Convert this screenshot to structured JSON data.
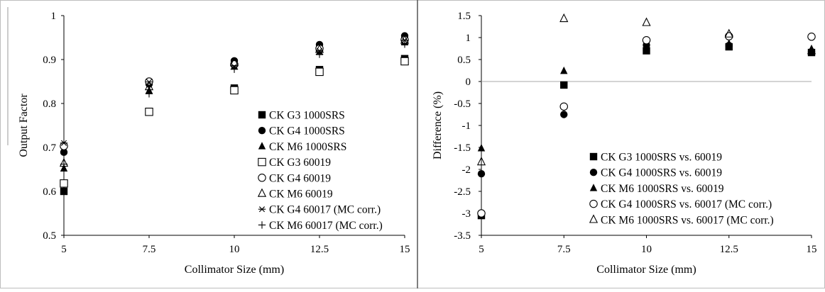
{
  "chart_data": [
    {
      "type": "scatter",
      "title": "",
      "xlabel": "Collimator Size (mm)",
      "ylabel": "Output Factor",
      "xlim": [
        5,
        15
      ],
      "ylim": [
        0.5,
        1
      ],
      "x_ticks": [
        "5",
        "7.5",
        "10",
        "12.5",
        "15"
      ],
      "y_ticks": [
        "0.5",
        "0.6",
        "0.7",
        "0.8",
        "0.9",
        "1"
      ],
      "grid": false,
      "legend_position": "bottom-right",
      "x": [
        5,
        7.5,
        10,
        12.5,
        15
      ],
      "series": [
        {
          "name": "CK G3 1000SRS",
          "marker": "square-filled",
          "values": [
            0.6,
            0.782,
            0.835,
            0.877,
            0.902
          ]
        },
        {
          "name": "CK G4 1000SRS",
          "marker": "circle-filled",
          "values": [
            0.689,
            0.844,
            0.897,
            0.934,
            0.954
          ]
        },
        {
          "name": "CK M6 1000SRS",
          "marker": "triangle-filled",
          "values": [
            0.652,
            0.829,
            0.884,
            0.917,
            0.939
          ]
        },
        {
          "name": "CK G3 60019",
          "marker": "square-open",
          "values": [
            0.618,
            0.781,
            0.83,
            0.872,
            0.896
          ]
        },
        {
          "name": "CK G4 60019",
          "marker": "circle-open",
          "values": [
            0.703,
            0.85,
            0.889,
            0.925,
            0.945
          ]
        },
        {
          "name": "CK M6 60019",
          "marker": "triangle-open",
          "values": [
            0.664,
            0.838,
            0.893,
            0.923,
            0.944
          ]
        },
        {
          "name": "CK G4 60017 (MC corr.)",
          "marker": "asterisk",
          "values": [
            0.71,
            0.849,
            0.884,
            0.92,
            0.944
          ]
        },
        {
          "name": "CK M6 60017 (MC corr.)",
          "marker": "plus",
          "values": [
            0.662,
            0.822,
            0.878,
            0.912,
            0.935
          ]
        }
      ]
    },
    {
      "type": "scatter",
      "title": "",
      "xlabel": "Collimator Size (mm)",
      "ylabel": "Difference  (%)",
      "xlim": [
        5,
        15
      ],
      "ylim": [
        -3.5,
        1.5
      ],
      "x_ticks": [
        "5",
        "7.5",
        "10",
        "12.5",
        "15"
      ],
      "y_ticks": [
        "1.5",
        "1",
        "0.5",
        "0",
        "-0.5",
        "-1",
        "-1.5",
        "-2",
        "-2.5",
        "-3",
        "-3.5"
      ],
      "grid": false,
      "zero_line": true,
      "legend_position": "bottom-right",
      "x": [
        5,
        7.5,
        10,
        12.5,
        15
      ],
      "series": [
        {
          "name": "CK G3 1000SRS vs. 60019",
          "marker": "square-filled",
          "values": [
            -3.05,
            -0.08,
            0.7,
            0.79,
            0.66
          ]
        },
        {
          "name": "CK G4 1000SRS vs. 60019",
          "marker": "circle-filled",
          "values": [
            -2.1,
            -0.75,
            0.83,
            0.82,
            0.68
          ]
        },
        {
          "name": "CK M6 1000SRS vs. 60019",
          "marker": "triangle-filled",
          "values": [
            -1.52,
            0.24,
            0.77,
            0.86,
            0.74
          ]
        },
        {
          "name": "CK G4 1000SRS vs. 60017 (MC corr.)",
          "marker": "circle-open",
          "values": [
            -3.0,
            -0.57,
            0.94,
            1.03,
            1.02
          ]
        },
        {
          "name": "CK M6 1000SRS vs. 60017 (MC corr.)",
          "marker": "triangle-open",
          "values": [
            -1.83,
            1.43,
            1.34,
            1.08,
            0.7
          ]
        }
      ]
    }
  ]
}
